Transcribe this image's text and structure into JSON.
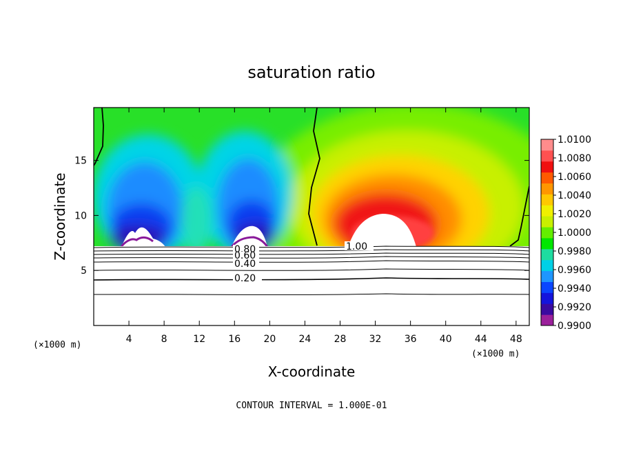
{
  "chart_data": {
    "type": "heatmap",
    "title": "saturation ratio",
    "xlabel": "X-coordinate",
    "ylabel": "Z-coordinate",
    "x_unit": "(×1000 m)",
    "x_ticks": [
      4,
      8,
      12,
      16,
      20,
      24,
      28,
      32,
      36,
      40,
      44,
      48
    ],
    "y_ticks": [
      5,
      10,
      15
    ],
    "xlim": [
      0,
      49.5
    ],
    "ylim": [
      0,
      19.8
    ],
    "colorbar": {
      "labels": [
        "1.0100",
        "1.0080",
        "1.0060",
        "1.0040",
        "1.0020",
        "1.0000",
        "0.9980",
        "0.9960",
        "0.9940",
        "0.9920",
        "0.9900"
      ],
      "colors": [
        "#9b209b",
        "#3a0aa0",
        "#1414dc",
        "#0a46ff",
        "#1e96ff",
        "#00d0e6",
        "#1edca0",
        "#00e600",
        "#64ee00",
        "#c8f000",
        "#f0f000",
        "#ffc800",
        "#ff9600",
        "#ff5a00",
        "#f01010",
        "#ff5050",
        "#ff8c8c"
      ]
    },
    "contour_labels": [
      "0.80",
      "0.60",
      "0.40",
      "0.20",
      "1.00"
    ],
    "footer": "CONTOUR INTERVAL = 1.000E-01"
  },
  "colors": {
    "axes": "#000000",
    "background": "#ffffff"
  }
}
